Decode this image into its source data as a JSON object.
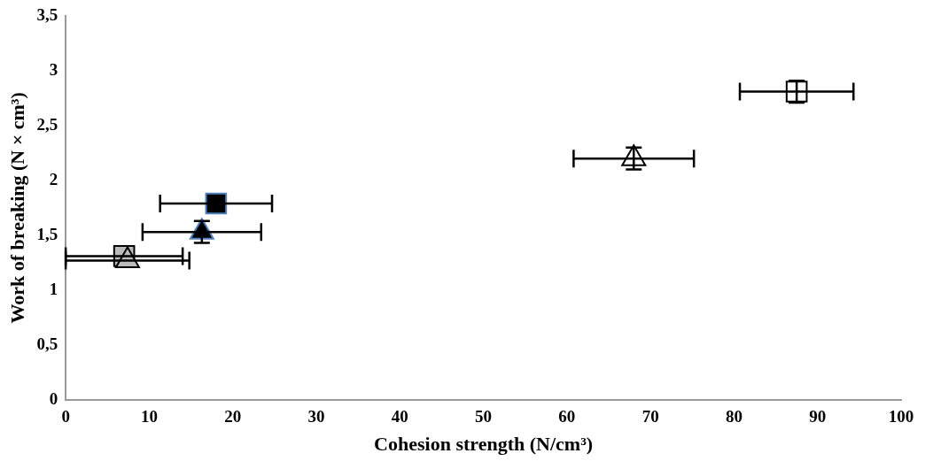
{
  "chart_data": {
    "type": "scatter",
    "xlabel": "Cohesion strength (N/cm³)",
    "ylabel": "Work of breaking (N × cm³)",
    "xlim": [
      0,
      100
    ],
    "xticks": [
      0,
      10,
      20,
      30,
      40,
      50,
      60,
      70,
      80,
      90,
      100
    ],
    "ylim": [
      0,
      3.5
    ],
    "yticks": [
      0,
      {
        "value": 0.5,
        "label": "0,5"
      },
      1,
      {
        "value": 1.5,
        "label": "1,5"
      },
      2,
      {
        "value": 2.5,
        "label": "2,5"
      },
      3,
      {
        "value": 3.5,
        "label": "3,5"
      }
    ],
    "grid": false,
    "legend": false,
    "series": [
      {
        "marker": "square",
        "color": "#ffffff",
        "x": [
          87.5
        ],
        "values": [
          2.81
        ],
        "errors": [
          0.1
        ],
        "xerrors": [
          6.8
        ]
      },
      {
        "marker": "triangle",
        "color": "#ffffff",
        "x": [
          68
        ],
        "values": [
          2.2
        ],
        "errors": [
          0.1
        ],
        "xerrors": [
          7.2
        ]
      },
      {
        "marker": "square",
        "color": "#000000",
        "x": [
          18
        ],
        "values": [
          1.79
        ],
        "xerrors": [
          6.7
        ]
      },
      {
        "marker": "triangle",
        "color": "#000000",
        "x": [
          16.3
        ],
        "values": [
          1.53
        ],
        "errors": [
          0.1
        ],
        "xerrors": [
          7.1
        ]
      },
      {
        "marker": "square",
        "color": "#bbbbbb",
        "x": [
          7
        ],
        "values": [
          1.31
        ],
        "xerrors": [
          7
        ]
      },
      {
        "marker": "triangle",
        "color": "#bbbbbb",
        "x": [
          7.4
        ],
        "values": [
          1.27
        ],
        "xerrors": [
          7.4
        ]
      }
    ]
  }
}
